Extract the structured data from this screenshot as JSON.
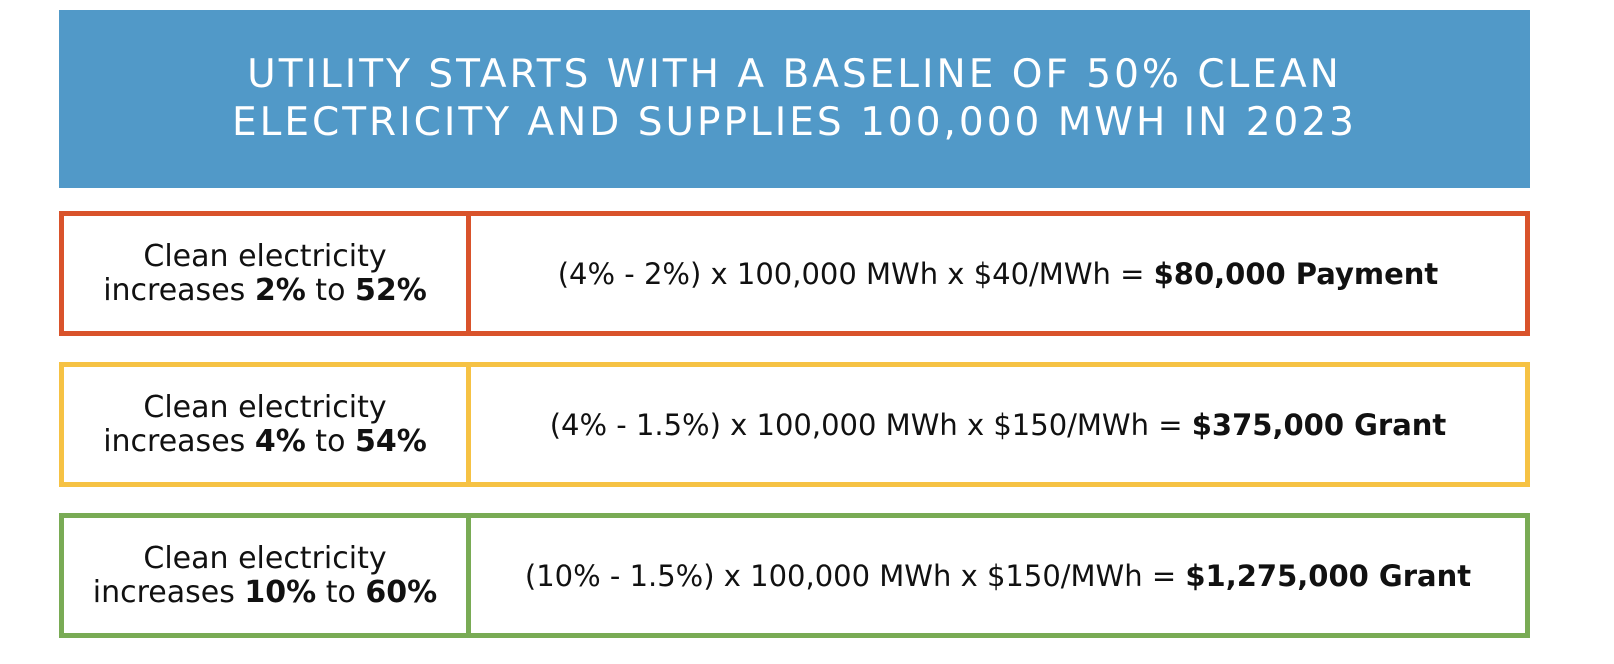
{
  "header": {
    "title": [
      "UTILITY STARTS WITH A BASELINE OF 50% CLEAN",
      "ELECTRICITY AND SUPPLIES 100,000 MWH IN 2023"
    ],
    "color": "#5199c8"
  },
  "rows": [
    {
      "color": "#d9532b",
      "left": [
        "Clean electricity",
        "increases ",
        "2%",
        " to ",
        "52%"
      ],
      "right": [
        "(4% - 2%) x 100,000 MWh x $40/MWh = ",
        "$80,000 Payment"
      ]
    },
    {
      "color": "#f6c244",
      "left": [
        "Clean electricity",
        "increases ",
        "4%",
        " to ",
        "54%"
      ],
      "right": [
        "(4% - 1.5%) x 100,000 MWh x $150/MWh = ",
        "$375,000 Grant"
      ]
    },
    {
      "color": "#79ab55",
      "left": [
        "Clean electricity",
        "increases ",
        "10%",
        " to ",
        "60%"
      ],
      "right": [
        "(10% - 1.5%) x 100,000 MWh x $150/MWh = ",
        "$1,275,000 Grant"
      ]
    }
  ]
}
